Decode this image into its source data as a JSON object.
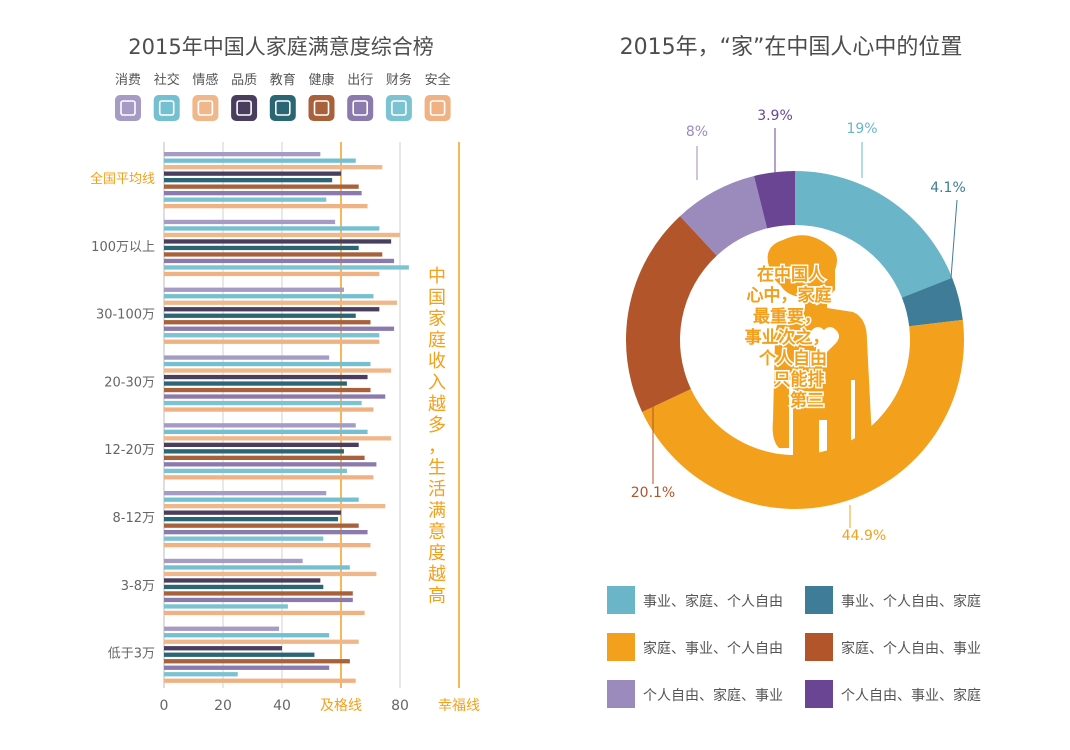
{
  "chart_data": [
    {
      "type": "bar",
      "title": "2015年中国人家庭满意度综合榜",
      "orientation": "horizontal",
      "categories": [
        "全国平均线",
        "100万以上",
        "30-100万",
        "20-30万",
        "12-20万",
        "8-12万",
        "3-8万",
        "低于3万"
      ],
      "x_ticks": [
        "0",
        "20",
        "40",
        "及格线",
        "80"
      ],
      "xlim": [
        0,
        100
      ],
      "reference_lines": [
        {
          "label": "及格线",
          "value": 60,
          "color": "#f3a01c"
        },
        {
          "label": "幸福线",
          "value": 100,
          "color": "#f3a01c"
        }
      ],
      "annotation": "中国家庭收入越多，生活满意度越高",
      "series": [
        {
          "name": "消费",
          "color": "#a59bc4",
          "icon": "wallet-icon",
          "values": [
            53,
            58,
            61,
            56,
            65,
            55,
            47,
            39
          ]
        },
        {
          "name": "社交",
          "color": "#74c0d0",
          "icon": "people-icon",
          "values": [
            65,
            73,
            71,
            70,
            69,
            66,
            63,
            56
          ]
        },
        {
          "name": "情感",
          "color": "#f0b88a",
          "icon": "hearts-icon",
          "values": [
            74,
            80,
            79,
            77,
            77,
            75,
            72,
            66
          ]
        },
        {
          "name": "品质",
          "color": "#4a3e5e",
          "icon": "thumbs-up-icon",
          "values": [
            60,
            77,
            73,
            69,
            66,
            60,
            53,
            40
          ]
        },
        {
          "name": "教育",
          "color": "#2b6675",
          "icon": "graduation-cap-icon",
          "values": [
            57,
            66,
            65,
            62,
            61,
            59,
            54,
            51
          ]
        },
        {
          "name": "健康",
          "color": "#a8613a",
          "icon": "stethoscope-icon",
          "values": [
            66,
            74,
            70,
            70,
            68,
            66,
            64,
            63
          ]
        },
        {
          "name": "出行",
          "color": "#8b7aae",
          "icon": "airplane-icon",
          "values": [
            67,
            78,
            78,
            75,
            72,
            69,
            64,
            56
          ]
        },
        {
          "name": "财务",
          "color": "#7cc3d1",
          "icon": "piggy-bank-icon",
          "values": [
            55,
            83,
            73,
            67,
            62,
            54,
            42,
            25
          ]
        },
        {
          "name": "安全",
          "color": "#f0b283",
          "icon": "shield-icon",
          "values": [
            69,
            73,
            73,
            71,
            71,
            70,
            68,
            65
          ]
        }
      ]
    },
    {
      "type": "pie",
      "title": "2015年，“家”在中国人心中的位置",
      "center_text": [
        "在中国人",
        "心中，家庭",
        "最重要，",
        "事业次之，",
        "个人自由",
        "只能排",
        "第三"
      ],
      "slices": [
        {
          "name": "事业、家庭、个人自由",
          "value": 19,
          "label": "19%",
          "color": "#6ab5c7"
        },
        {
          "name": "事业、个人自由、家庭",
          "value": 4.1,
          "label": "4.1%",
          "color": "#3e7c97"
        },
        {
          "name": "家庭、事业、个人自由",
          "value": 44.9,
          "label": "44.9%",
          "color": "#f3a01c"
        },
        {
          "name": "家庭、个人自由、事业",
          "value": 20.1,
          "label": "20.1%",
          "color": "#b2552a"
        },
        {
          "name": "个人自由、家庭、事业",
          "value": 8,
          "label": "8%",
          "color": "#9b8bbc"
        },
        {
          "name": "个人自由、事业、家庭",
          "value": 3.9,
          "label": "3.9%",
          "color": "#6a4594"
        }
      ]
    }
  ]
}
